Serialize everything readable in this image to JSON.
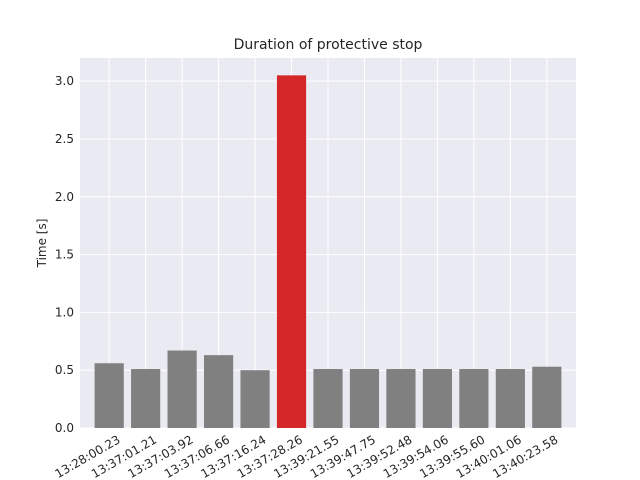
{
  "chart_data": {
    "type": "bar",
    "title": "Duration of protective stop",
    "xlabel": "",
    "ylabel": "Time [s]",
    "ylim": [
      0,
      3.2
    ],
    "yticks": [
      0.0,
      0.5,
      1.0,
      1.5,
      2.0,
      2.5,
      3.0
    ],
    "ytick_labels": [
      "0.0",
      "0.5",
      "1.0",
      "1.5",
      "2.0",
      "2.5",
      "3.0"
    ],
    "grid": true,
    "background": "#eaeaf2",
    "grid_color": "#ffffff",
    "bar_color": "#808080",
    "highlight_color": "#d62728",
    "highlight_index": 5,
    "categories": [
      "13:28:00.23",
      "13:37:01.21",
      "13:37:03.92",
      "13:37:06.66",
      "13:37:16.24",
      "13:37:28.26",
      "13:39:21.55",
      "13:39:47.75",
      "13:39:52.48",
      "13:39:54.06",
      "13:39:55.60",
      "13:40:01.06",
      "13:40:23.58"
    ],
    "values": [
      0.56,
      0.51,
      0.67,
      0.63,
      0.5,
      3.05,
      0.51,
      0.51,
      0.51,
      0.51,
      0.51,
      0.51,
      0.53
    ]
  }
}
